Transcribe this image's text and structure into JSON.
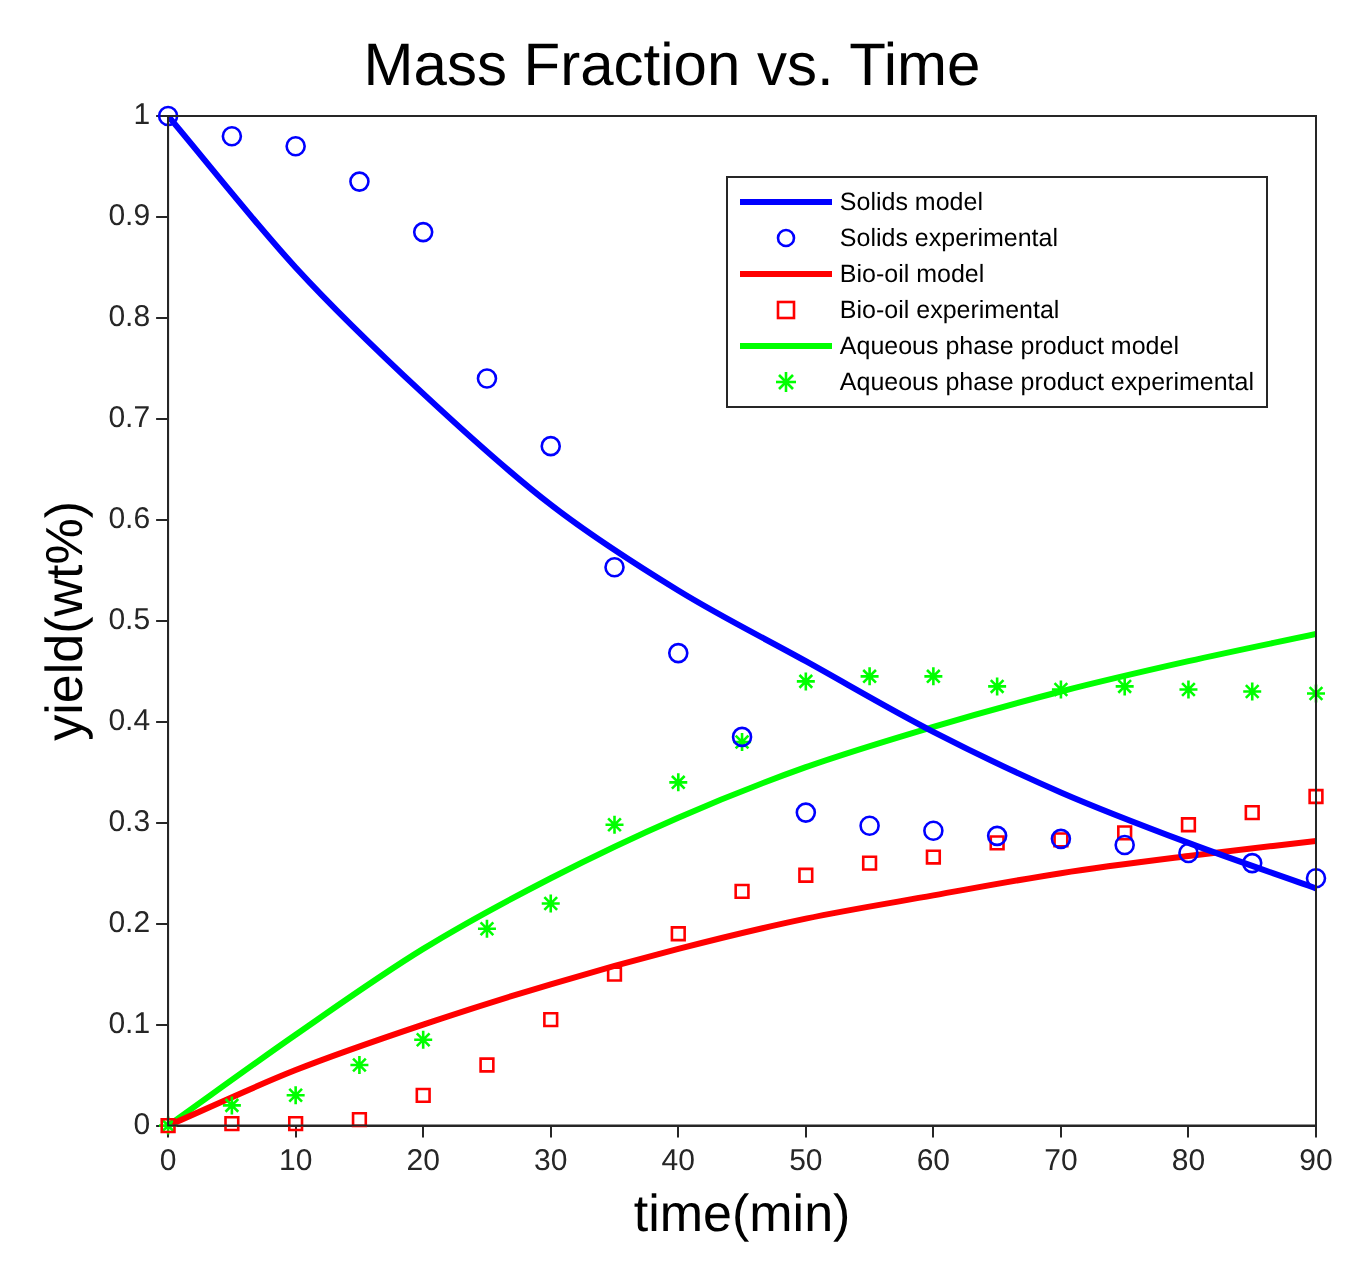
{
  "chart_data": {
    "type": "line",
    "title": "Mass Fraction vs. Time",
    "xlabel": "time(min)",
    "ylabel": "yield(wt%)",
    "xlim": [
      0,
      90
    ],
    "xticks": [
      0,
      10,
      20,
      30,
      40,
      50,
      60,
      70,
      80,
      90
    ],
    "ylim": [
      0,
      1
    ],
    "yticks": [
      0,
      0.1,
      0.2,
      0.3,
      0.4,
      0.5,
      0.6,
      0.7,
      0.8,
      0.9,
      1
    ],
    "grid": false,
    "legend": "top right",
    "series": [
      {
        "name": "Solids model",
        "type": "line",
        "marker": "none",
        "line_style": "solid",
        "color": "#0000ff",
        "x": [
          0,
          10,
          20,
          30,
          40,
          50,
          60,
          70,
          80,
          90
        ],
        "values": [
          1,
          0.85,
          0.725,
          0.615,
          0.53,
          0.46,
          0.39,
          0.33,
          0.28,
          0.235
        ]
      },
      {
        "name": "Solids experimental",
        "type": "scatter",
        "marker": "circle",
        "color": "#0000ff",
        "x": [
          0,
          5,
          10,
          15,
          20,
          25,
          30,
          35,
          40,
          45,
          50,
          55,
          60,
          65,
          70,
          75,
          80,
          85,
          90
        ],
        "values": [
          1,
          0.98,
          0.97,
          0.935,
          0.885,
          0.74,
          0.673,
          0.553,
          0.468,
          0.385,
          0.31,
          0.297,
          0.292,
          0.287,
          0.284,
          0.278,
          0.27,
          0.26,
          0.245
        ]
      },
      {
        "name": "Bio-oil model",
        "type": "line",
        "marker": "none",
        "line_style": "solid",
        "color": "#ff0000",
        "x": [
          0,
          10,
          20,
          30,
          40,
          50,
          60,
          70,
          80,
          90
        ],
        "values": [
          0,
          0.055,
          0.1,
          0.14,
          0.175,
          0.205,
          0.228,
          0.25,
          0.267,
          0.282
        ]
      },
      {
        "name": "Bio-oil experimental",
        "type": "scatter",
        "marker": "square",
        "color": "#ff0000",
        "x": [
          0,
          5,
          10,
          15,
          20,
          25,
          30,
          35,
          40,
          45,
          50,
          55,
          60,
          65,
          70,
          75,
          80,
          85,
          90
        ],
        "values": [
          0,
          0.002,
          0.002,
          0.006,
          0.03,
          0.06,
          0.105,
          0.15,
          0.19,
          0.232,
          0.248,
          0.26,
          0.266,
          0.28,
          0.283,
          0.29,
          0.298,
          0.31,
          0.326
        ]
      },
      {
        "name": "Aqueous phase product model",
        "type": "line",
        "marker": "none",
        "line_style": "solid",
        "color": "#00ff00",
        "x": [
          0,
          10,
          20,
          30,
          40,
          50,
          60,
          70,
          80,
          90
        ],
        "values": [
          0,
          0.09,
          0.175,
          0.245,
          0.305,
          0.355,
          0.395,
          0.43,
          0.46,
          0.487
        ]
      },
      {
        "name": "Aqueous phase product experimental",
        "type": "scatter",
        "marker": "cross",
        "color": "#00ff00",
        "x": [
          0,
          5,
          10,
          15,
          20,
          25,
          30,
          35,
          40,
          45,
          50,
          55,
          60,
          65,
          70,
          75,
          80,
          85,
          90
        ],
        "values": [
          0,
          0.02,
          0.03,
          0.06,
          0.085,
          0.195,
          0.22,
          0.298,
          0.34,
          0.38,
          0.44,
          0.445,
          0.445,
          0.435,
          0.432,
          0.435,
          0.432,
          0.43,
          0.428
        ]
      }
    ]
  }
}
